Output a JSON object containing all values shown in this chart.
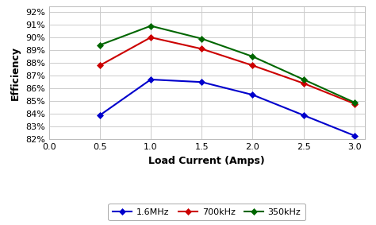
{
  "x": [
    0.5,
    1.0,
    1.5,
    2.0,
    2.5,
    3.0
  ],
  "series_order": [
    "1.6MHz",
    "700kHz",
    "350kHz"
  ],
  "series": {
    "1.6MHz": [
      83.9,
      86.7,
      86.5,
      85.5,
      83.9,
      82.3
    ],
    "700kHz": [
      87.8,
      90.0,
      89.1,
      87.8,
      86.4,
      84.8
    ],
    "350kHz": [
      89.4,
      90.9,
      89.9,
      88.5,
      86.7,
      84.9
    ]
  },
  "colors": {
    "1.6MHz": "#0000CC",
    "700kHz": "#CC0000",
    "350kHz": "#006600"
  },
  "xlabel": "Load Current (Amps)",
  "ylabel": "Efficiency",
  "xlim": [
    0.0,
    3.1
  ],
  "ylim": [
    82,
    92.4
  ],
  "yticks": [
    82,
    83,
    84,
    85,
    86,
    87,
    88,
    89,
    90,
    91,
    92
  ],
  "xticks": [
    0.0,
    0.5,
    1.0,
    1.5,
    2.0,
    2.5,
    3.0
  ],
  "background_color": "#FFFFFF",
  "grid_color": "#CCCCCC",
  "axis_fontsize": 9,
  "tick_fontsize": 8,
  "legend_fontsize": 8
}
